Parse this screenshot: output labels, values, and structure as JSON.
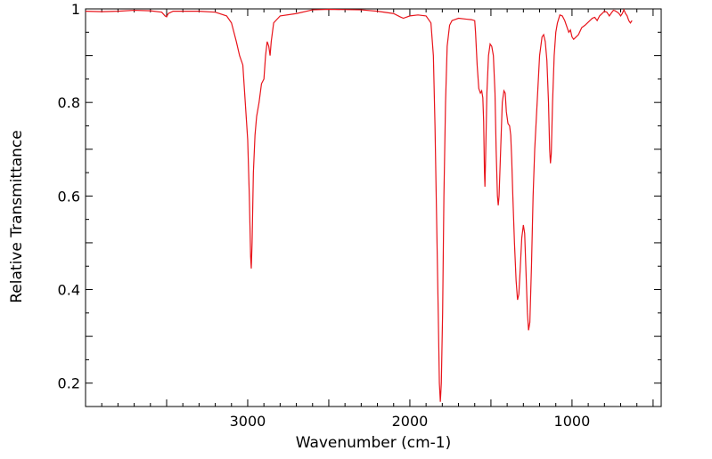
{
  "chart_data": {
    "type": "line",
    "title": "",
    "xlabel": "Wavenumber (cm-1)",
    "ylabel": "Relative Transmittance",
    "xlim": [
      4000,
      450
    ],
    "ylim": [
      0.15,
      1.0
    ],
    "x_reversed": true,
    "grid": false,
    "legend": "none",
    "x_ticks": [
      {
        "value": 3000,
        "label": "3000"
      },
      {
        "value": 2000,
        "label": "2000"
      },
      {
        "value": 1000,
        "label": "1000"
      }
    ],
    "y_ticks": [
      {
        "value": 0.2,
        "label": "0.2"
      },
      {
        "value": 0.4,
        "label": "0.4"
      },
      {
        "value": 0.6,
        "label": "0.6"
      },
      {
        "value": 0.8,
        "label": "0.8"
      },
      {
        "value": 1.0,
        "label": "1"
      }
    ],
    "series": [
      {
        "color": "#e8141b",
        "points": [
          [
            4000,
            0.995
          ],
          [
            3900,
            0.994
          ],
          [
            3800,
            0.995
          ],
          [
            3700,
            0.997
          ],
          [
            3600,
            0.996
          ],
          [
            3530,
            0.993
          ],
          [
            3510,
            0.985
          ],
          [
            3500,
            0.983
          ],
          [
            3490,
            0.99
          ],
          [
            3460,
            0.995
          ],
          [
            3300,
            0.995
          ],
          [
            3200,
            0.993
          ],
          [
            3130,
            0.985
          ],
          [
            3100,
            0.97
          ],
          [
            3070,
            0.93
          ],
          [
            3050,
            0.9
          ],
          [
            3030,
            0.88
          ],
          [
            3015,
            0.8
          ],
          [
            3000,
            0.72
          ],
          [
            2990,
            0.6
          ],
          [
            2982,
            0.47
          ],
          [
            2978,
            0.445
          ],
          [
            2973,
            0.5
          ],
          [
            2965,
            0.65
          ],
          [
            2955,
            0.73
          ],
          [
            2945,
            0.77
          ],
          [
            2930,
            0.8
          ],
          [
            2915,
            0.84
          ],
          [
            2900,
            0.85
          ],
          [
            2890,
            0.9
          ],
          [
            2880,
            0.93
          ],
          [
            2870,
            0.92
          ],
          [
            2862,
            0.9
          ],
          [
            2855,
            0.93
          ],
          [
            2840,
            0.97
          ],
          [
            2800,
            0.985
          ],
          [
            2700,
            0.99
          ],
          [
            2600,
            0.998
          ],
          [
            2500,
            0.999
          ],
          [
            2300,
            0.998
          ],
          [
            2200,
            0.995
          ],
          [
            2100,
            0.99
          ],
          [
            2060,
            0.983
          ],
          [
            2040,
            0.98
          ],
          [
            2000,
            0.985
          ],
          [
            1950,
            0.987
          ],
          [
            1900,
            0.985
          ],
          [
            1870,
            0.97
          ],
          [
            1855,
            0.9
          ],
          [
            1845,
            0.75
          ],
          [
            1835,
            0.55
          ],
          [
            1825,
            0.35
          ],
          [
            1818,
            0.2
          ],
          [
            1812,
            0.16
          ],
          [
            1806,
            0.2
          ],
          [
            1798,
            0.35
          ],
          [
            1790,
            0.6
          ],
          [
            1780,
            0.8
          ],
          [
            1770,
            0.92
          ],
          [
            1755,
            0.965
          ],
          [
            1740,
            0.975
          ],
          [
            1700,
            0.98
          ],
          [
            1650,
            0.978
          ],
          [
            1620,
            0.977
          ],
          [
            1600,
            0.975
          ],
          [
            1595,
            0.95
          ],
          [
            1585,
            0.88
          ],
          [
            1575,
            0.83
          ],
          [
            1565,
            0.82
          ],
          [
            1557,
            0.825
          ],
          [
            1550,
            0.81
          ],
          [
            1545,
            0.76
          ],
          [
            1540,
            0.65
          ],
          [
            1537,
            0.62
          ],
          [
            1533,
            0.68
          ],
          [
            1525,
            0.82
          ],
          [
            1515,
            0.9
          ],
          [
            1505,
            0.925
          ],
          [
            1495,
            0.92
          ],
          [
            1485,
            0.9
          ],
          [
            1475,
            0.82
          ],
          [
            1468,
            0.7
          ],
          [
            1460,
            0.6
          ],
          [
            1455,
            0.58
          ],
          [
            1450,
            0.6
          ],
          [
            1440,
            0.7
          ],
          [
            1430,
            0.8
          ],
          [
            1420,
            0.825
          ],
          [
            1412,
            0.82
          ],
          [
            1405,
            0.78
          ],
          [
            1395,
            0.755
          ],
          [
            1385,
            0.75
          ],
          [
            1378,
            0.73
          ],
          [
            1372,
            0.68
          ],
          [
            1365,
            0.6
          ],
          [
            1355,
            0.5
          ],
          [
            1345,
            0.42
          ],
          [
            1336,
            0.378
          ],
          [
            1328,
            0.39
          ],
          [
            1320,
            0.44
          ],
          [
            1310,
            0.51
          ],
          [
            1300,
            0.538
          ],
          [
            1292,
            0.52
          ],
          [
            1285,
            0.45
          ],
          [
            1275,
            0.35
          ],
          [
            1268,
            0.313
          ],
          [
            1260,
            0.33
          ],
          [
            1250,
            0.45
          ],
          [
            1240,
            0.6
          ],
          [
            1230,
            0.7
          ],
          [
            1215,
            0.8
          ],
          [
            1200,
            0.9
          ],
          [
            1185,
            0.94
          ],
          [
            1175,
            0.945
          ],
          [
            1165,
            0.93
          ],
          [
            1155,
            0.89
          ],
          [
            1145,
            0.8
          ],
          [
            1138,
            0.7
          ],
          [
            1133,
            0.67
          ],
          [
            1128,
            0.69
          ],
          [
            1120,
            0.8
          ],
          [
            1110,
            0.9
          ],
          [
            1100,
            0.95
          ],
          [
            1090,
            0.97
          ],
          [
            1075,
            0.987
          ],
          [
            1060,
            0.985
          ],
          [
            1045,
            0.975
          ],
          [
            1030,
            0.96
          ],
          [
            1020,
            0.95
          ],
          [
            1010,
            0.955
          ],
          [
            1000,
            0.94
          ],
          [
            990,
            0.935
          ],
          [
            975,
            0.94
          ],
          [
            960,
            0.945
          ],
          [
            940,
            0.96
          ],
          [
            920,
            0.965
          ],
          [
            905,
            0.97
          ],
          [
            890,
            0.975
          ],
          [
            875,
            0.98
          ],
          [
            860,
            0.982
          ],
          [
            845,
            0.975
          ],
          [
            830,
            0.985
          ],
          [
            815,
            0.99
          ],
          [
            800,
            0.995
          ],
          [
            785,
            0.993
          ],
          [
            770,
            0.985
          ],
          [
            760,
            0.99
          ],
          [
            745,
            0.997
          ],
          [
            735,
            0.996
          ],
          [
            720,
            0.993
          ],
          [
            710,
            0.99
          ],
          [
            700,
            0.985
          ],
          [
            690,
            0.99
          ],
          [
            680,
            0.998
          ],
          [
            670,
            0.99
          ],
          [
            660,
            0.985
          ],
          [
            650,
            0.975
          ],
          [
            640,
            0.97
          ],
          [
            630,
            0.975
          ]
        ]
      }
    ]
  }
}
